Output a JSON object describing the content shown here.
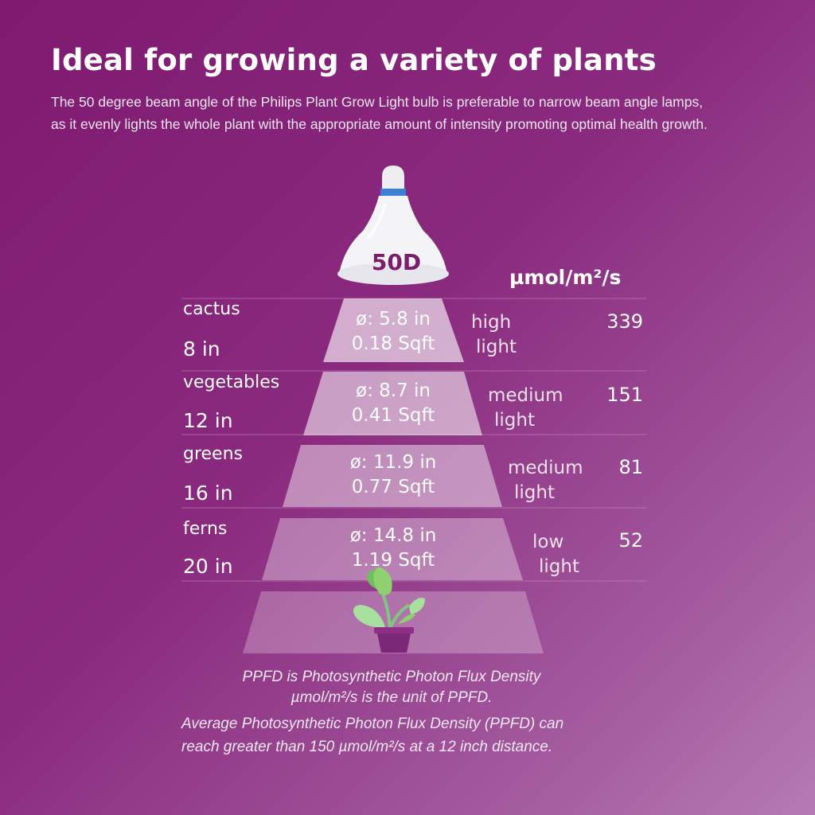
{
  "title": "Ideal for growing a variety of plants",
  "subtitle": {
    "line1": "The 50 degree beam angle of the Philips Plant Grow Light bulb is preferable to narrow beam angle lamps,",
    "line2": "as it evenly lights the whole plant with the appropriate amount of intensity promoting optimal health growth."
  },
  "lamp_label": "50D",
  "unit_header": "µmol/m²/s",
  "rows": [
    {
      "plant": "cactus",
      "distance": "8 in",
      "diameter": "ø: 5.8 in",
      "area": "0.18 Sqft",
      "level1": "high",
      "level2": "light",
      "ppfd": "339"
    },
    {
      "plant": "vegetables",
      "distance": "12 in",
      "diameter": "ø: 8.7 in",
      "area": "0.41 Sqft",
      "level1": "medium",
      "level2": "light",
      "ppfd": "151"
    },
    {
      "plant": "greens",
      "distance": "16 in",
      "diameter": "ø: 11.9 in",
      "area": "0.77 Sqft",
      "level1": "medium",
      "level2": "light",
      "ppfd": "81"
    },
    {
      "plant": "ferns",
      "distance": "20 in",
      "diameter": "ø: 14.8 in",
      "area": "1.19 Sqft",
      "level1": "low",
      "level2": "light",
      "ppfd": "52"
    }
  ],
  "footnotes": {
    "line1": "PPFD is Photosynthetic Photon Flux Density",
    "line2": "µmol/m²/s is the unit of PPFD.",
    "line3": "Average Photosynthetic Photon Flux Density (PPFD) can",
    "line4": "reach greater than 150 µmol/m²/s at a 12 inch distance."
  },
  "colors": {
    "background": "#7e1a70",
    "lamp_accent": "#3b7fd8",
    "leaf": "#8fd08f",
    "pot": "#7c2878"
  },
  "icons": [
    "lamp-bulb-icon",
    "plant-pot-icon"
  ]
}
